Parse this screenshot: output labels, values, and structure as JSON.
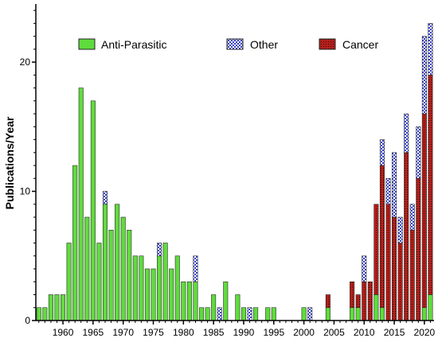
{
  "chart_data": {
    "type": "bar",
    "stacked": true,
    "ylabel": "Publications/Year",
    "xlabel": "",
    "xlim": [
      1955.5,
      2021.6
    ],
    "ylim": [
      0,
      24.5
    ],
    "x_ticks": [
      1960,
      1965,
      1970,
      1975,
      1980,
      1985,
      1990,
      1995,
      2000,
      2005,
      2010,
      2015,
      2020
    ],
    "y_ticks": [
      0,
      10,
      20
    ],
    "legend_placement": "top",
    "years": [
      1956,
      1957,
      1958,
      1959,
      1960,
      1961,
      1962,
      1963,
      1964,
      1965,
      1966,
      1967,
      1968,
      1969,
      1970,
      1971,
      1972,
      1973,
      1974,
      1975,
      1976,
      1977,
      1978,
      1979,
      1980,
      1981,
      1982,
      1983,
      1984,
      1985,
      1986,
      1987,
      1988,
      1989,
      1990,
      1991,
      1992,
      1993,
      1994,
      1995,
      1996,
      1997,
      1998,
      1999,
      2000,
      2001,
      2002,
      2003,
      2004,
      2005,
      2006,
      2007,
      2008,
      2009,
      2010,
      2011,
      2012,
      2013,
      2014,
      2015,
      2016,
      2017,
      2018,
      2019,
      2020,
      2021
    ],
    "series": [
      {
        "name": "Anti-Parasitic",
        "color": "#5fdc3c",
        "pattern": "solid",
        "values": [
          1,
          1,
          2,
          2,
          2,
          6,
          12,
          18,
          8,
          17,
          6,
          9,
          7,
          9,
          8,
          7,
          5,
          5,
          4,
          4,
          5,
          6,
          4,
          5,
          3,
          3,
          3,
          1,
          1,
          2,
          0,
          3,
          0,
          2,
          1,
          0,
          1,
          0,
          1,
          1,
          0,
          0,
          0,
          0,
          1,
          0,
          0,
          0,
          1,
          0,
          0,
          0,
          1,
          1,
          0,
          0,
          2,
          1,
          0,
          0,
          0,
          0,
          0,
          0,
          1,
          2
        ]
      },
      {
        "name": "Cancer",
        "color": "#b3201a",
        "pattern": "dotted",
        "values": [
          0,
          0,
          0,
          0,
          0,
          0,
          0,
          0,
          0,
          0,
          0,
          0,
          0,
          0,
          0,
          0,
          0,
          0,
          0,
          0,
          0,
          0,
          0,
          0,
          0,
          0,
          0,
          0,
          0,
          0,
          0,
          0,
          0,
          0,
          0,
          0,
          0,
          0,
          0,
          0,
          0,
          0,
          0,
          0,
          0,
          0,
          0,
          0,
          1,
          0,
          0,
          0,
          2,
          1,
          3,
          3,
          7,
          11,
          9,
          8,
          6,
          13,
          7,
          11,
          15,
          17
        ]
      },
      {
        "name": "Other",
        "color": "#3b44c8",
        "pattern": "checkered",
        "values": [
          0,
          0,
          0,
          0,
          0,
          0,
          0,
          0,
          0,
          0,
          0,
          1,
          0,
          0,
          0,
          0,
          0,
          0,
          0,
          0,
          1,
          0,
          0,
          0,
          0,
          0,
          2,
          0,
          0,
          0,
          1,
          0,
          0,
          0,
          0,
          1,
          0,
          0,
          0,
          0,
          0,
          0,
          0,
          0,
          0,
          1,
          0,
          0,
          0,
          0,
          0,
          0,
          0,
          0,
          2,
          0,
          0,
          2,
          2,
          5,
          2,
          3,
          2,
          4,
          6,
          4
        ]
      }
    ],
    "legend_order": [
      "Anti-Parasitic",
      "Other",
      "Cancer"
    ]
  }
}
